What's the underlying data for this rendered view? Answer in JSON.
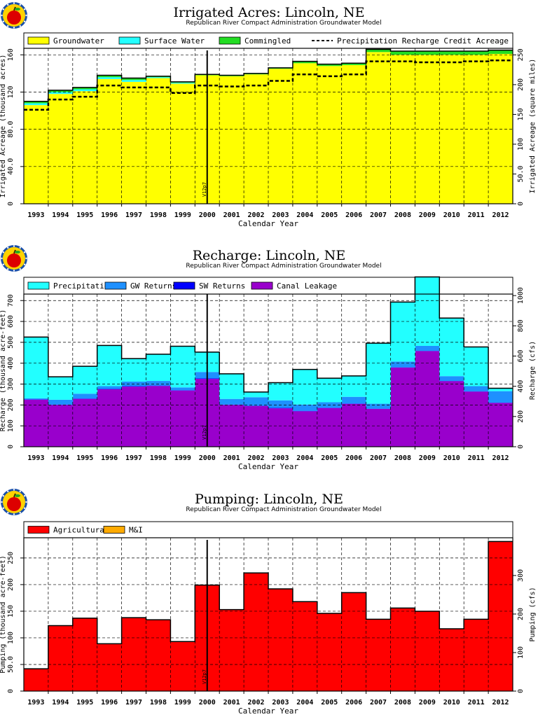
{
  "colors": {
    "groundwater": "#ffff00",
    "surface_water": "#22ffff",
    "commingled": "#22dd22",
    "precipitation": "#22ffff",
    "gw_returns": "#1e90ff",
    "sw_returns": "#0000ff",
    "canal_leakage": "#9900cc",
    "agricultural": "#ff0000",
    "mi": "#ffaa00",
    "gridline": "#000000"
  },
  "chart_data": [
    {
      "type": "area",
      "title": "Irrigated Acres: Lincoln, NE",
      "subtitle": "Republican River Compact Administration Groundwater Model",
      "xlabel": "Calendar Year",
      "ylabel": "Irrigated Acreage (thousand acres)",
      "ylabel_right": "Irrigated Acreage (square miles)",
      "ylim": [
        0,
        167
      ],
      "yticks": [
        0,
        40.0,
        80.0,
        120,
        160
      ],
      "yticks_labels": [
        "0",
        "40.0",
        "80.0",
        "120",
        "160"
      ],
      "ylim_right": [
        0,
        261
      ],
      "yticks_right": [
        0,
        50.0,
        100,
        150,
        200,
        250
      ],
      "yticks_right_labels": [
        "0",
        "50.0",
        "100",
        "150",
        "200",
        "250"
      ],
      "years": [
        "1993",
        "1994",
        "1995",
        "1996",
        "1997",
        "1998",
        "1999",
        "2000",
        "2001",
        "2002",
        "2003",
        "2004",
        "2005",
        "2006",
        "2007",
        "2008",
        "2009",
        "2010",
        "2011",
        "2012"
      ],
      "marker": "V12p7",
      "marker_year": 2000.5,
      "grid": true,
      "legend_position": "top",
      "series": [
        {
          "name": "Groundwater",
          "values": [
            106,
            118,
            121,
            134,
            131,
            135,
            129,
            138,
            137,
            139,
            145,
            151,
            148,
            149,
            163,
            160,
            160,
            160,
            160,
            161
          ]
        },
        {
          "name": "Surface Water",
          "values": [
            2,
            2,
            2,
            2,
            2,
            1,
            1,
            0,
            0,
            0,
            0,
            0,
            0,
            0,
            0,
            0,
            0,
            0,
            0,
            0
          ]
        },
        {
          "name": "Commingled",
          "values": [
            2,
            2,
            2,
            2,
            2,
            1,
            1,
            1,
            1,
            1,
            1,
            2,
            2,
            2,
            3,
            4,
            4,
            4,
            4,
            4
          ]
        },
        {
          "name": "Precipitation Recharge Credit Acreage",
          "values": [
            101,
            112,
            115,
            127,
            125,
            125,
            119,
            127,
            126,
            127,
            132,
            139,
            137,
            139,
            153,
            153,
            152,
            152,
            153,
            154
          ]
        }
      ]
    },
    {
      "type": "area",
      "title": "Recharge: Lincoln, NE",
      "subtitle": "Republican River Compact Administration Groundwater Model",
      "xlabel": "Calendar Year",
      "ylabel": "Recharge (thousand acre-feet)",
      "ylabel_right": "Recharge (cfs)",
      "ylim": [
        0,
        731
      ],
      "yticks": [
        0,
        100,
        200,
        300,
        400,
        500,
        600,
        700
      ],
      "yticks_labels": [
        "0",
        "100",
        "200",
        "300",
        "400",
        "500",
        "600",
        "700"
      ],
      "ylim_right": [
        0,
        1010
      ],
      "yticks_right": [
        0,
        200,
        400,
        600,
        800,
        1000
      ],
      "yticks_right_labels": [
        "0",
        "200",
        "400",
        "600",
        "800",
        "1000"
      ],
      "years": [
        "1993",
        "1994",
        "1995",
        "1996",
        "1997",
        "1998",
        "1999",
        "2000",
        "2001",
        "2002",
        "2003",
        "2004",
        "2005",
        "2006",
        "2007",
        "2008",
        "2009",
        "2010",
        "2011",
        "2012"
      ],
      "marker": "V12p7",
      "marker_year": 2000.5,
      "grid": true,
      "legend_position": "top",
      "series": [
        {
          "name": "Precipitation",
          "values": [
            293,
            110,
            131,
            195,
            110,
            128,
            197,
            95,
            120,
            25,
            85,
            168,
            115,
            100,
            290,
            285,
            330,
            278,
            188,
            14
          ]
        },
        {
          "name": "GW Returns",
          "values": [
            5,
            23,
            23,
            13,
            22,
            22,
            13,
            31,
            27,
            40,
            36,
            30,
            26,
            32,
            24,
            28,
            24,
            23,
            25,
            55
          ]
        },
        {
          "name": "SW Returns",
          "values": [
            2,
            2,
            2,
            2,
            2,
            2,
            2,
            2,
            2,
            2,
            2,
            2,
            2,
            2,
            1,
            1,
            1,
            1,
            1,
            1
          ]
        },
        {
          "name": "Canal Leakage",
          "values": [
            225,
            200,
            229,
            275,
            288,
            291,
            269,
            325,
            200,
            195,
            184,
            170,
            185,
            205,
            181,
            379,
            458,
            314,
            264,
            210
          ]
        }
      ]
    },
    {
      "type": "area",
      "title": "Pumping: Lincoln, NE",
      "subtitle": "Republican River Compact Administration Groundwater Model",
      "xlabel": "Calendar Year",
      "ylabel": "Pumping (thousand acre-feet)",
      "ylabel_right": "Pumping (cfs)",
      "ylim": [
        0,
        288
      ],
      "yticks": [
        0,
        50.0,
        100,
        150,
        200,
        250
      ],
      "yticks_labels": [
        "0",
        "50.0",
        "100",
        "150",
        "200",
        "250"
      ],
      "ylim_right": [
        0,
        398
      ],
      "yticks_right": [
        0,
        100,
        200,
        300
      ],
      "yticks_right_labels": [
        "0",
        "100",
        "200",
        "300"
      ],
      "years": [
        "1993",
        "1994",
        "1995",
        "1996",
        "1997",
        "1998",
        "1999",
        "2000",
        "2001",
        "2002",
        "2003",
        "2004",
        "2005",
        "2006",
        "2007",
        "2008",
        "2009",
        "2010",
        "2011",
        "2012"
      ],
      "marker": "V12p7",
      "marker_year": 2000.5,
      "grid": true,
      "legend_position": "top",
      "series": [
        {
          "name": "Agricultural",
          "values": [
            42,
            123,
            137,
            89,
            138,
            134,
            93,
            199,
            153,
            222,
            192,
            168,
            146,
            185,
            135,
            156,
            150,
            117,
            135,
            281
          ]
        },
        {
          "name": "M&I",
          "values": [
            0,
            0,
            0,
            0,
            0,
            0,
            0,
            0,
            0,
            0,
            0,
            0,
            0,
            0,
            0,
            0,
            0,
            0,
            0,
            0
          ]
        }
      ]
    }
  ]
}
